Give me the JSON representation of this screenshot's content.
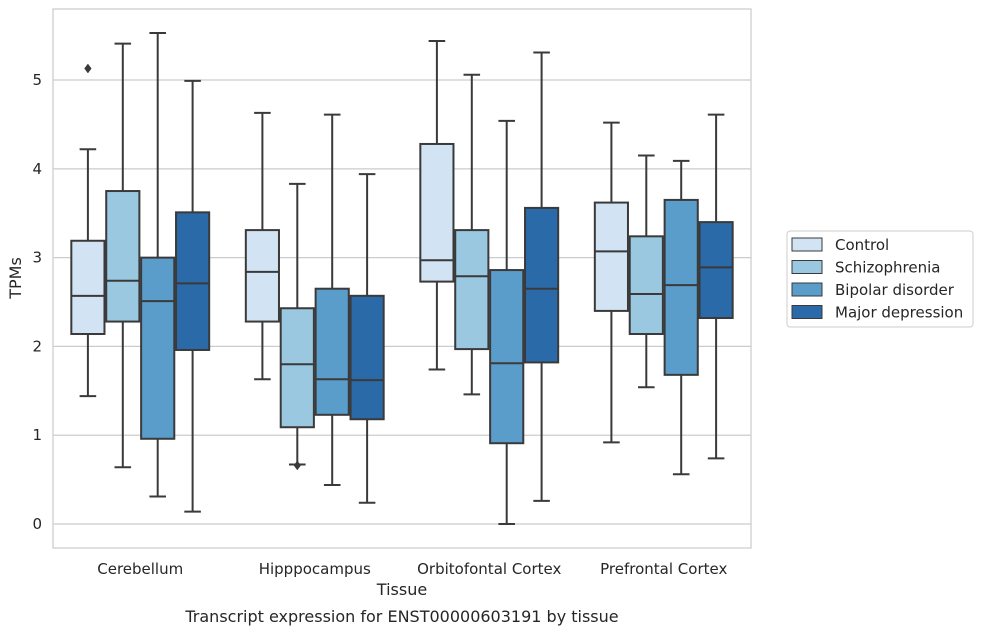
{
  "chart_data": {
    "type": "boxplot",
    "title": "",
    "caption": "Transcript expression for ENST00000603191 by tissue",
    "xlabel": "Tissue",
    "ylabel": "TPMs",
    "ylim": [
      -0.27,
      5.8
    ],
    "yticks": [
      0,
      1,
      2,
      3,
      4,
      5
    ],
    "grid": "horizontal",
    "legend_position": "right",
    "categories": [
      "Cerebellum",
      "Hipppocampus",
      "Orbitofontal Cortex",
      "Prefrontal Cortex"
    ],
    "series": [
      {
        "name": "Control",
        "color": "#d2e3f3",
        "boxes": [
          {
            "whislo": 1.44,
            "q1": 2.14,
            "med": 2.57,
            "q3": 3.19,
            "whishi": 4.22,
            "fliers": [
              5.13
            ]
          },
          {
            "whislo": 1.63,
            "q1": 2.28,
            "med": 2.84,
            "q3": 3.31,
            "whishi": 4.63,
            "fliers": []
          },
          {
            "whislo": 1.74,
            "q1": 2.73,
            "med": 2.97,
            "q3": 4.28,
            "whishi": 5.44,
            "fliers": []
          },
          {
            "whislo": 0.92,
            "q1": 2.4,
            "med": 3.07,
            "q3": 3.62,
            "whishi": 4.52,
            "fliers": []
          }
        ]
      },
      {
        "name": "Schizophrenia",
        "color": "#9ac8e0",
        "boxes": [
          {
            "whislo": 0.64,
            "q1": 2.28,
            "med": 2.74,
            "q3": 3.75,
            "whishi": 5.41,
            "fliers": []
          },
          {
            "whislo": 0.67,
            "q1": 1.09,
            "med": 1.8,
            "q3": 2.43,
            "whishi": 3.83,
            "fliers": [
              0.66
            ]
          },
          {
            "whislo": 1.46,
            "q1": 1.97,
            "med": 2.79,
            "q3": 3.31,
            "whishi": 5.06,
            "fliers": []
          },
          {
            "whislo": 1.54,
            "q1": 2.14,
            "med": 2.59,
            "q3": 3.24,
            "whishi": 4.15,
            "fliers": []
          }
        ]
      },
      {
        "name": "Bipolar disorder",
        "color": "#5a9dcb",
        "boxes": [
          {
            "whislo": 0.31,
            "q1": 0.96,
            "med": 2.51,
            "q3": 3.0,
            "whishi": 5.53,
            "fliers": []
          },
          {
            "whislo": 0.44,
            "q1": 1.23,
            "med": 1.63,
            "q3": 2.65,
            "whishi": 4.61,
            "fliers": []
          },
          {
            "whislo": 0.0,
            "q1": 0.91,
            "med": 1.81,
            "q3": 2.86,
            "whishi": 4.54,
            "fliers": []
          },
          {
            "whislo": 0.56,
            "q1": 1.68,
            "med": 2.69,
            "q3": 3.65,
            "whishi": 4.09,
            "fliers": []
          }
        ]
      },
      {
        "name": "Major depression",
        "color": "#2a6aa8",
        "boxes": [
          {
            "whislo": 0.14,
            "q1": 1.96,
            "med": 2.71,
            "q3": 3.51,
            "whishi": 4.99,
            "fliers": []
          },
          {
            "whislo": 0.24,
            "q1": 1.18,
            "med": 1.62,
            "q3": 2.57,
            "whishi": 3.94,
            "fliers": []
          },
          {
            "whislo": 0.26,
            "q1": 1.82,
            "med": 2.65,
            "q3": 3.56,
            "whishi": 5.31,
            "fliers": []
          },
          {
            "whislo": 0.74,
            "q1": 2.32,
            "med": 2.89,
            "q3": 3.4,
            "whishi": 4.61,
            "fliers": []
          }
        ]
      }
    ]
  }
}
